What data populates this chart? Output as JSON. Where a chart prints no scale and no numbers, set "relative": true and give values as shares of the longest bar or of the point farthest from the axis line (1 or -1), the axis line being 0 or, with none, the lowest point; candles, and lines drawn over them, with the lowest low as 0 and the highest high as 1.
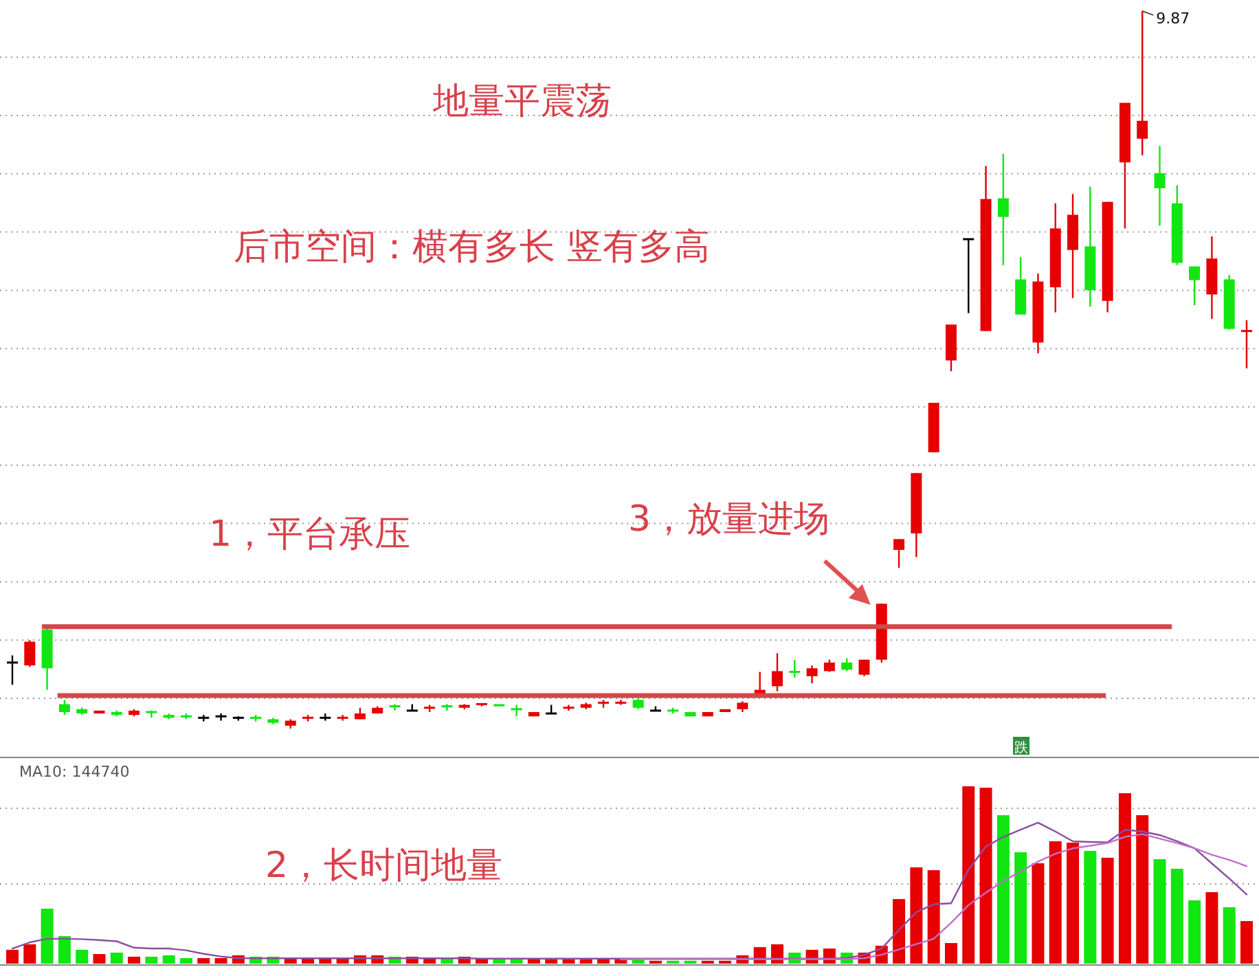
{
  "chart_data": [
    {
      "type": "candlestick",
      "relative": true,
      "grid": true,
      "title": "地量平震荡",
      "subtitle": "后市空间：横有多长 竖有多高",
      "annotations": [
        "1，平台承压",
        "3，放量进场",
        "9.87",
        "跌"
      ],
      "categories": [
        null,
        null,
        null,
        null,
        null,
        null,
        null,
        null,
        null,
        null,
        null,
        null,
        null,
        null,
        null,
        null,
        null,
        null,
        null,
        null,
        null,
        null,
        null,
        null,
        null,
        null,
        null,
        null,
        null,
        null,
        null,
        null,
        null,
        null,
        null,
        null,
        null,
        null,
        null,
        null,
        null,
        null,
        null,
        null,
        null,
        null,
        null,
        null,
        null,
        null,
        null,
        null,
        null,
        null,
        null,
        null,
        null,
        null,
        null,
        null,
        null,
        null,
        null,
        null,
        null,
        null,
        null,
        null,
        null,
        null,
        null,
        null
      ],
      "ohlc": [
        [
          0.092,
          0.102,
          0.061,
          0.092
        ],
        [
          0.088,
          0.123,
          0.086,
          0.121
        ],
        [
          0.138,
          0.14,
          0.054,
          0.084
        ],
        [
          0.034,
          0.04,
          0.019,
          0.023
        ],
        [
          0.027,
          0.029,
          0.019,
          0.021
        ],
        [
          0.021,
          0.025,
          0.021,
          0.025
        ],
        [
          0.023,
          0.025,
          0.017,
          0.019
        ],
        [
          0.019,
          0.027,
          0.017,
          0.025
        ],
        [
          0.023,
          0.025,
          0.015,
          0.021
        ],
        [
          0.019,
          0.021,
          0.013,
          0.015
        ],
        [
          0.017,
          0.021,
          0.013,
          0.015
        ],
        [
          0.015,
          0.019,
          0.01,
          0.015
        ],
        [
          0.017,
          0.021,
          0.011,
          0.017
        ],
        [
          0.015,
          0.017,
          0.011,
          0.015
        ],
        [
          0.015,
          0.019,
          0.01,
          0.013
        ],
        [
          0.013,
          0.015,
          0.006,
          0.008
        ],
        [
          0.004,
          0.013,
          0,
          0.011
        ],
        [
          0.013,
          0.019,
          0.01,
          0.015
        ],
        [
          0.015,
          0.021,
          0.011,
          0.015
        ],
        [
          0.013,
          0.019,
          0.011,
          0.015
        ],
        [
          0.013,
          0.029,
          0.013,
          0.021
        ],
        [
          0.021,
          0.031,
          0.021,
          0.029
        ],
        [
          0.031,
          0.034,
          0.025,
          0.029
        ],
        [
          0.025,
          0.034,
          0.025,
          0.025
        ],
        [
          0.027,
          0.033,
          0.023,
          0.029
        ],
        [
          0.031,
          0.034,
          0.025,
          0.029
        ],
        [
          0.029,
          0.034,
          0.027,
          0.033
        ],
        [
          0.033,
          0.034,
          0.031,
          0.034
        ],
        [
          0.034,
          0.034,
          0.031,
          0.031
        ],
        [
          0.027,
          0.033,
          0.017,
          0.025
        ],
        [
          0.017,
          0.023,
          0.017,
          0.023
        ],
        [
          0.021,
          0.033,
          0.021,
          0.021
        ],
        [
          0.027,
          0.033,
          0.025,
          0.029
        ],
        [
          0.029,
          0.036,
          0.027,
          0.034
        ],
        [
          0.034,
          0.04,
          0.029,
          0.036
        ],
        [
          0.034,
          0.04,
          0.033,
          0.036
        ],
        [
          0.04,
          0.042,
          0.027,
          0.029
        ],
        [
          0.025,
          0.031,
          0.025,
          0.025
        ],
        [
          0.025,
          0.029,
          0.021,
          0.023
        ],
        [
          0.023,
          0.023,
          0.017,
          0.017
        ],
        [
          0.017,
          0.023,
          0.017,
          0.023
        ],
        [
          0.023,
          0.027,
          0.023,
          0.027
        ],
        [
          0.027,
          0.038,
          0.023,
          0.036
        ],
        [
          0.046,
          0.079,
          0.046,
          0.054
        ],
        [
          0.059,
          0.105,
          0.052,
          0.08
        ],
        [
          0.079,
          0.096,
          0.071,
          0.077
        ],
        [
          0.073,
          0.088,
          0.063,
          0.084
        ],
        [
          0.08,
          0.096,
          0.079,
          0.092
        ],
        [
          0.092,
          0.098,
          0.08,
          0.082
        ],
        [
          0.075,
          0.096,
          0.073,
          0.096
        ],
        [
          0.096,
          0.174,
          0.092,
          0.174
        ],
        [
          0.249,
          0.264,
          0.224,
          0.264
        ],
        [
          0.272,
          0.356,
          0.239,
          0.356
        ],
        [
          0.385,
          0.454,
          0.385,
          0.454
        ],
        [
          0.513,
          0.563,
          0.498,
          0.563
        ],
        [
          0.682,
          0.682,
          0.579,
          0.682
        ],
        [
          0.554,
          0.784,
          0.554,
          0.738
        ],
        [
          0.739,
          0.801,
          0.646,
          0.713
        ],
        [
          0.626,
          0.657,
          0.577,
          0.577
        ],
        [
          0.538,
          0.634,
          0.523,
          0.623
        ],
        [
          0.615,
          0.732,
          0.58,
          0.697
        ],
        [
          0.667,
          0.745,
          0.6,
          0.716
        ],
        [
          0.672,
          0.755,
          0.588,
          0.611
        ],
        [
          0.596,
          0.734,
          0.58,
          0.734
        ],
        [
          0.789,
          0.872,
          0.697,
          0.872
        ],
        [
          0.822,
          1,
          0.799,
          0.847
        ],
        [
          0.774,
          0.812,
          0.701,
          0.753
        ],
        [
          0.732,
          0.757,
          0.646,
          0.649
        ],
        [
          0.644,
          0.644,
          0.59,
          0.625
        ],
        [
          0.605,
          0.686,
          0.571,
          0.655
        ],
        [
          0.626,
          0.632,
          0.556,
          0.557
        ],
        [
          0.552,
          0.569,
          0.502,
          0.554
        ]
      ],
      "colors": [
        "#000000",
        "#e60000",
        "#11e611",
        "#11e611",
        "#11e611",
        "#e60000",
        "#11e611",
        "#e60000",
        "#11e611",
        "#11e611",
        "#11e611",
        "#000000",
        "#000000",
        "#000000",
        "#11e611",
        "#11e611",
        "#e60000",
        "#e60000",
        "#000000",
        "#e60000",
        "#e60000",
        "#e60000",
        "#11e611",
        "#000000",
        "#e60000",
        "#11e611",
        "#e60000",
        "#e60000",
        "#11e611",
        "#11e611",
        "#e60000",
        "#000000",
        "#e60000",
        "#e60000",
        "#e60000",
        "#e60000",
        "#11e611",
        "#000000",
        "#11e611",
        "#11e611",
        "#e60000",
        "#e60000",
        "#e60000",
        "#e60000",
        "#e60000",
        "#11e611",
        "#e60000",
        "#e60000",
        "#11e611",
        "#e60000",
        "#e60000",
        "#e60000",
        "#e60000",
        "#e60000",
        "#e60000",
        "#000000",
        "#e60000",
        "#11e611",
        "#11e611",
        "#e60000",
        "#e60000",
        "#e60000",
        "#11e611",
        "#e60000",
        "#e60000",
        "#e60000",
        "#11e611",
        "#11e611",
        "#11e611",
        "#e60000",
        "#11e611",
        "#e60000"
      ],
      "ref_lines": [
        {
          "axis": "y",
          "value": 0.142,
          "color": "#d04848"
        },
        {
          "axis": "y",
          "value": 0.046,
          "color": "#d04848"
        }
      ]
    },
    {
      "type": "bar",
      "relative": true,
      "ref_lines": [
        {
          "axis": "y",
          "value": 0.45,
          "color": "#9a9a9a",
          "line_style": "dotted"
        },
        {
          "axis": "y",
          "value": 0.876,
          "color": "#9a9a9a",
          "line_style": "dotted"
        }
      ],
      "annotations": [
        "MA10: 144740",
        "2，长时间地量"
      ],
      "categories": [
        null,
        null,
        null,
        null,
        null,
        null,
        null,
        null,
        null,
        null,
        null,
        null,
        null,
        null,
        null,
        null,
        null,
        null,
        null,
        null,
        null,
        null,
        null,
        null,
        null,
        null,
        null,
        null,
        null,
        null,
        null,
        null,
        null,
        null,
        null,
        null,
        null,
        null,
        null,
        null,
        null,
        null,
        null,
        null,
        null,
        null,
        null,
        null,
        null,
        null,
        null,
        null,
        null,
        null,
        null,
        null,
        null,
        null,
        null,
        null,
        null,
        null,
        null,
        null,
        null,
        null,
        null,
        null,
        null,
        null,
        null,
        null
      ],
      "series": [
        {
          "type": "bar",
          "values": [
            0.078,
            0.109,
            0.31,
            0.155,
            0.078,
            0.054,
            0.062,
            0.039,
            0.039,
            0.047,
            0.031,
            0.031,
            0.031,
            0.047,
            0.039,
            0.039,
            0.031,
            0.031,
            0.031,
            0.031,
            0.047,
            0.047,
            0.039,
            0.039,
            0.031,
            0.031,
            0.039,
            0.031,
            0.031,
            0.031,
            0.031,
            0.023,
            0.023,
            0.023,
            0.031,
            0.023,
            0.023,
            0.016,
            0.016,
            0.016,
            0.016,
            0.016,
            0.047,
            0.093,
            0.109,
            0.062,
            0.078,
            0.085,
            0.062,
            0.062,
            0.101,
            0.364,
            0.543,
            0.527,
            0.116,
            1,
            0.992,
            0.837,
            0.628,
            0.566,
            0.69,
            0.682,
            0.636,
            0.597,
            0.961,
            0.837,
            0.589,
            0.535,
            0.357,
            0.403,
            0.318,
            0.24
          ],
          "colors": [
            "#e60000",
            "#e60000",
            "#11e611",
            "#11e611",
            "#11e611",
            "#e60000",
            "#11e611",
            "#e60000",
            "#11e611",
            "#11e611",
            "#11e611",
            "#e60000",
            "#e60000",
            "#e60000",
            "#11e611",
            "#11e611",
            "#e60000",
            "#e60000",
            "#e60000",
            "#e60000",
            "#e60000",
            "#e60000",
            "#11e611",
            "#e60000",
            "#e60000",
            "#11e611",
            "#e60000",
            "#e60000",
            "#11e611",
            "#11e611",
            "#e60000",
            "#e60000",
            "#e60000",
            "#e60000",
            "#e60000",
            "#e60000",
            "#11e611",
            "#e60000",
            "#11e611",
            "#11e611",
            "#e60000",
            "#e60000",
            "#e60000",
            "#e60000",
            "#e60000",
            "#11e611",
            "#e60000",
            "#e60000",
            "#11e611",
            "#e60000",
            "#e60000",
            "#e60000",
            "#e60000",
            "#e60000",
            "#e60000",
            "#e60000",
            "#e60000",
            "#11e611",
            "#11e611",
            "#e60000",
            "#e60000",
            "#e60000",
            "#11e611",
            "#e60000",
            "#e60000",
            "#e60000",
            "#11e611",
            "#11e611",
            "#11e611",
            "#e60000",
            "#11e611",
            "#e60000"
          ]
        },
        {
          "type": "line",
          "color": "#8a4f9e",
          "values": [
            0.085,
            0.12,
            0.14,
            0.14,
            0.138,
            0.133,
            0.126,
            0.09,
            0.085,
            0.085,
            0.075,
            0.055,
            0.04,
            0.031,
            0.03,
            0.03,
            0.03,
            0.03,
            0.03,
            0.03,
            0.03,
            0.03,
            0.03,
            0.03,
            0.03,
            0.03,
            0.03,
            0.028,
            0.028,
            0.028,
            0.028,
            0.028,
            0.028,
            0.028,
            0.028,
            0.028,
            0.028,
            0.028,
            0.028,
            0.028,
            0.028,
            0.028,
            0.028,
            0.028,
            0.028,
            0.028,
            0.028,
            0.028,
            0.031,
            0.05,
            0.085,
            0.19,
            0.29,
            0.335,
            0.34,
            0.53,
            0.66,
            0.715,
            0.755,
            0.795,
            0.745,
            0.69,
            0.686,
            0.684,
            0.755,
            0.745,
            0.725,
            0.69,
            0.651,
            0.565,
            0.48,
            0.39
          ]
        },
        {
          "type": "line",
          "color": "#c070c8",
          "values": [
            null,
            null,
            null,
            null,
            null,
            null,
            null,
            null,
            null,
            null,
            null,
            null,
            null,
            null,
            null,
            null,
            null,
            null,
            null,
            null,
            null,
            null,
            null,
            null,
            null,
            null,
            null,
            null,
            null,
            null,
            null,
            null,
            null,
            null,
            null,
            0.023,
            0.025,
            0.025,
            0.025,
            0.025,
            0.025,
            0.025,
            0.025,
            0.025,
            0.025,
            0.025,
            0.025,
            0.025,
            0.025,
            0.031,
            0.05,
            0.08,
            0.11,
            0.14,
            0.23,
            0.33,
            0.4,
            0.465,
            0.52,
            0.575,
            0.62,
            0.65,
            0.665,
            0.68,
            0.715,
            0.73,
            0.705,
            0.68,
            0.651,
            0.614,
            0.585,
            0.55
          ]
        }
      ]
    }
  ]
}
